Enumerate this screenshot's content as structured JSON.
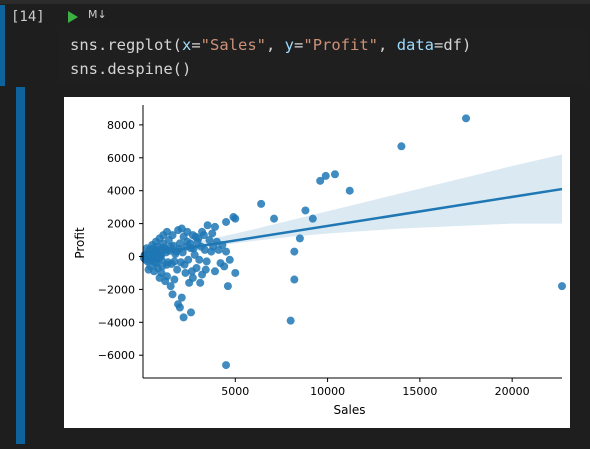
{
  "cell": {
    "execution_count": "[14]",
    "run_icon": "play-icon",
    "cell_type_label": "M↓",
    "code_lines": [
      {
        "parts": [
          {
            "t": "sns.regplot(",
            "c": "fn"
          },
          {
            "t": "x",
            "c": "kw"
          },
          {
            "t": "=",
            "c": "op"
          },
          {
            "t": "\"Sales\"",
            "c": "str"
          },
          {
            "t": ", ",
            "c": "op"
          },
          {
            "t": "y",
            "c": "kw"
          },
          {
            "t": "=",
            "c": "op"
          },
          {
            "t": "\"Profit\"",
            "c": "str"
          },
          {
            "t": ", ",
            "c": "op"
          },
          {
            "t": "data",
            "c": "kw"
          },
          {
            "t": "=df)",
            "c": "op"
          }
        ]
      },
      {
        "parts": [
          {
            "t": "sns.despine()",
            "c": "fn"
          }
        ]
      }
    ]
  },
  "chart_data": {
    "type": "scatter",
    "xlabel": "Sales",
    "ylabel": "Profit",
    "xlim": [
      0,
      22700
    ],
    "ylim": [
      -7200,
      9000
    ],
    "xticks": [
      5000,
      10000,
      15000,
      20000
    ],
    "yticks": [
      8000,
      6000,
      4000,
      2000,
      0,
      -2000,
      -4000,
      -6000
    ],
    "ytick_labels": [
      "8000",
      "6000",
      "4000",
      "2000",
      "0",
      "−2000",
      "−4000",
      "−6000"
    ],
    "grid": false,
    "color": "#1f77b4",
    "points": [
      [
        17500,
        8400
      ],
      [
        14000,
        6700
      ],
      [
        10400,
        5000
      ],
      [
        9900,
        4900
      ],
      [
        9600,
        4600
      ],
      [
        11200,
        4000
      ],
      [
        8800,
        2800
      ],
      [
        9200,
        2300
      ],
      [
        8500,
        1100
      ],
      [
        8200,
        300
      ],
      [
        8200,
        -1400
      ],
      [
        8000,
        -3900
      ],
      [
        22700,
        -1800
      ],
      [
        7100,
        2300
      ],
      [
        6400,
        3200
      ],
      [
        4900,
        2400
      ],
      [
        5000,
        2300
      ],
      [
        4500,
        2100
      ],
      [
        3900,
        1800
      ],
      [
        3500,
        1900
      ],
      [
        3300,
        1300
      ],
      [
        3200,
        1500
      ],
      [
        3600,
        1000
      ],
      [
        3800,
        600
      ],
      [
        4100,
        400
      ],
      [
        4300,
        700
      ],
      [
        4500,
        300
      ],
      [
        4700,
        -200
      ],
      [
        4400,
        -600
      ],
      [
        5000,
        -1000
      ],
      [
        4600,
        -1800
      ],
      [
        4500,
        -6600
      ],
      [
        3900,
        -900
      ],
      [
        3200,
        -1100
      ],
      [
        2900,
        -700
      ],
      [
        2500,
        -1600
      ],
      [
        2100,
        -2500
      ],
      [
        1900,
        -2900
      ],
      [
        1600,
        -2300
      ],
      [
        2000,
        -3100
      ],
      [
        2200,
        -3700
      ],
      [
        2600,
        -3400
      ],
      [
        2800,
        100
      ],
      [
        2600,
        500
      ],
      [
        2400,
        900
      ],
      [
        2200,
        1200
      ],
      [
        2000,
        800
      ],
      [
        1800,
        300
      ],
      [
        1700,
        -300
      ],
      [
        1500,
        600
      ],
      [
        1400,
        1000
      ],
      [
        1300,
        -500
      ],
      [
        1200,
        400
      ],
      [
        1100,
        800
      ],
      [
        1000,
        -200
      ],
      [
        900,
        200
      ],
      [
        800,
        600
      ],
      [
        700,
        -400
      ],
      [
        600,
        300
      ],
      [
        500,
        100
      ],
      [
        400,
        -100
      ],
      [
        300,
        200
      ],
      [
        200,
        0
      ],
      [
        100,
        100
      ],
      [
        150,
        -200
      ],
      [
        250,
        -300
      ],
      [
        350,
        400
      ],
      [
        450,
        -250
      ],
      [
        550,
        500
      ],
      [
        650,
        -350
      ],
      [
        750,
        350
      ],
      [
        850,
        -150
      ],
      [
        950,
        450
      ],
      [
        1050,
        -600
      ],
      [
        1150,
        550
      ],
      [
        1250,
        250
      ],
      [
        1350,
        -350
      ],
      [
        1450,
        350
      ],
      [
        1550,
        -450
      ],
      [
        1650,
        650
      ],
      [
        1750,
        150
      ],
      [
        1850,
        -800
      ],
      [
        1950,
        450
      ],
      [
        2050,
        -350
      ],
      [
        2150,
        250
      ],
      [
        2250,
        -500
      ],
      [
        2350,
        600
      ],
      [
        2450,
        -200
      ],
      [
        2550,
        800
      ],
      [
        2650,
        -900
      ],
      [
        2750,
        500
      ],
      [
        2850,
        1200
      ],
      [
        2950,
        900
      ],
      [
        3050,
        -200
      ],
      [
        3150,
        600
      ],
      [
        3350,
        400
      ],
      [
        3450,
        -300
      ],
      [
        3700,
        300
      ],
      [
        3750,
        1400
      ],
      [
        4000,
        900
      ],
      [
        4200,
        -400
      ],
      [
        1300,
        -1200
      ],
      [
        1000,
        -1000
      ],
      [
        800,
        -700
      ],
      [
        600,
        -900
      ],
      [
        400,
        -600
      ],
      [
        1700,
        -1400
      ],
      [
        2300,
        -1000
      ],
      [
        2700,
        -1300
      ],
      [
        3100,
        -1600
      ],
      [
        3400,
        -800
      ],
      [
        700,
        900
      ],
      [
        900,
        1100
      ],
      [
        1100,
        1300
      ],
      [
        1300,
        1500
      ],
      [
        1600,
        1300
      ],
      [
        1900,
        1600
      ],
      [
        2100,
        1700
      ],
      [
        2400,
        1500
      ],
      [
        2700,
        1300
      ],
      [
        3000,
        1100
      ],
      [
        1200,
        -1500
      ],
      [
        1500,
        -1800
      ],
      [
        900,
        -1300
      ],
      [
        300,
        -800
      ],
      [
        200,
        500
      ],
      [
        500,
        700
      ],
      [
        50,
        -100
      ],
      [
        80,
        60
      ],
      [
        120,
        -40
      ],
      [
        180,
        80
      ],
      [
        220,
        -60
      ],
      [
        280,
        40
      ],
      [
        320,
        -20
      ],
      [
        380,
        70
      ],
      [
        420,
        -90
      ],
      [
        480,
        30
      ],
      [
        520,
        -70
      ],
      [
        580,
        90
      ],
      [
        620,
        -30
      ],
      [
        680,
        60
      ],
      [
        720,
        -80
      ],
      [
        780,
        20
      ],
      [
        820,
        -50
      ],
      [
        880,
        80
      ],
      [
        920,
        -10
      ],
      [
        980,
        50
      ]
    ],
    "regression": {
      "x0": 0,
      "y0": 90,
      "x1": 22700,
      "y1": 4100
    },
    "ci_band": {
      "x": [
        0,
        2000,
        4000,
        6000,
        8000,
        10000,
        12000,
        14000,
        16000,
        18000,
        20000,
        22700
      ],
      "upper": [
        280,
        700,
        1150,
        1650,
        2200,
        2750,
        3300,
        3850,
        4400,
        4950,
        5500,
        6200
      ],
      "lower": [
        -100,
        300,
        650,
        950,
        1200,
        1400,
        1550,
        1700,
        1800,
        1900,
        2000,
        2000
      ]
    }
  }
}
